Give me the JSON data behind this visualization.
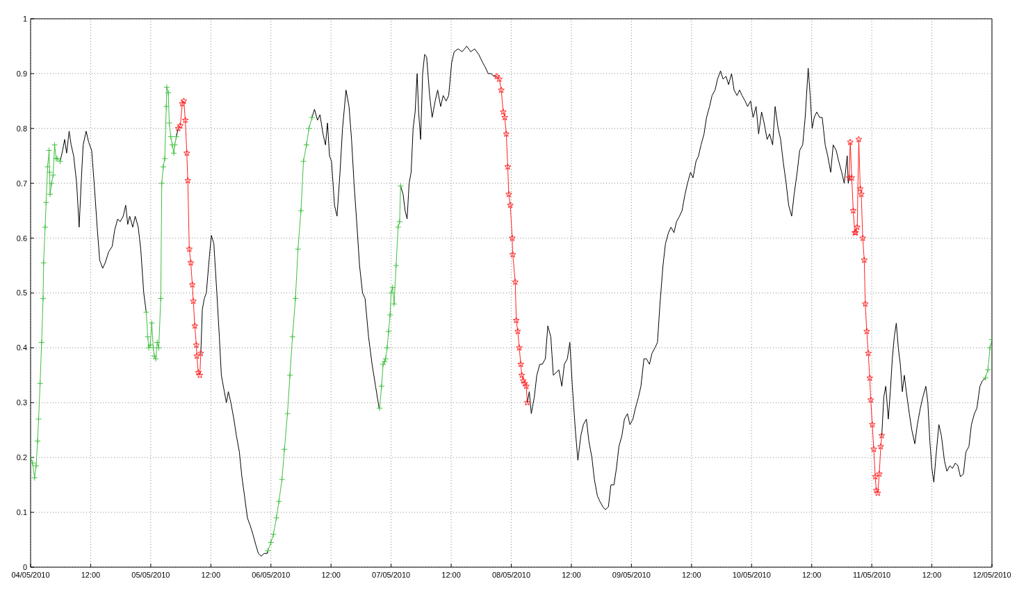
{
  "chart_data": {
    "type": "line",
    "xlim": [
      "2010-05-04",
      "2010-05-12"
    ],
    "xticks": [
      {
        "value": "2010-05-04",
        "label": "04/05/2010"
      },
      {
        "value": "2010-05-04T12:00",
        "label": "12:00"
      },
      {
        "value": "2010-05-05",
        "label": "05/05/2010"
      },
      {
        "value": "2010-05-05T12:00",
        "label": "12:00"
      },
      {
        "value": "2010-05-06",
        "label": "06/05/2010"
      },
      {
        "value": "2010-05-06T12:00",
        "label": "12:00"
      },
      {
        "value": "2010-05-07",
        "label": "07/05/2010"
      },
      {
        "value": "2010-05-07T12:00",
        "label": "12:00"
      },
      {
        "value": "2010-05-08",
        "label": "08/05/2010"
      },
      {
        "value": "2010-05-08T12:00",
        "label": "12:00"
      },
      {
        "value": "2010-05-09",
        "label": "09/05/2010"
      },
      {
        "value": "2010-05-09T12:00",
        "label": "12:00"
      },
      {
        "value": "2010-05-10",
        "label": "10/05/2010"
      },
      {
        "value": "2010-05-10T12:00",
        "label": "12:00"
      },
      {
        "value": "2010-05-11",
        "label": "11/05/2010"
      },
      {
        "value": "2010-05-11T12:00",
        "label": "12:00"
      },
      {
        "value": "2010-05-12",
        "label": "12/05/2010"
      }
    ],
    "ylim": [
      0,
      1
    ],
    "yticks": [
      0,
      0.1,
      0.2,
      0.3,
      0.4,
      0.5,
      0.6,
      0.7,
      0.8,
      0.9,
      1
    ],
    "grid": true,
    "series": [
      {
        "color": "#3fbf3f",
        "marker": "cross",
        "x": [
          "2010-05-04T00:00",
          "2010-05-04T00:24",
          "2010-05-04T00:48",
          "2010-05-04T01:06",
          "2010-05-04T01:24",
          "2010-05-04T01:36",
          "2010-05-04T01:54",
          "2010-05-04T02:12",
          "2010-05-04T02:30",
          "2010-05-04T02:36",
          "2010-05-04T02:54",
          "2010-05-04T03:06",
          "2010-05-04T03:24",
          "2010-05-04T03:42",
          "2010-05-04T03:48",
          "2010-05-04T03:54",
          "2010-05-04T04:12",
          "2010-05-04T04:30",
          "2010-05-04T04:48",
          "2010-05-04T05:06",
          "2010-05-04T05:18",
          "2010-05-04T05:54"
        ],
        "values": [
          0.2,
          0.19,
          0.163,
          0.185,
          0.23,
          0.27,
          0.335,
          0.41,
          0.49,
          0.555,
          0.62,
          0.665,
          0.73,
          0.76,
          0.72,
          0.68,
          0.7,
          0.715,
          0.77,
          0.745,
          0.745,
          0.74
        ]
      },
      {
        "color": "#000000",
        "x": [
          "2010-05-04T05:54",
          "2010-05-04T06:24",
          "2010-05-04T06:48",
          "2010-05-04T07:12",
          "2010-05-04T07:42",
          "2010-05-04T08:06",
          "2010-05-04T08:36",
          "2010-05-04T09:12",
          "2010-05-04T09:42",
          "2010-05-04T10:06",
          "2010-05-04T10:30",
          "2010-05-04T11:06",
          "2010-05-04T11:36",
          "2010-05-04T12:12",
          "2010-05-04T12:42",
          "2010-05-04T13:18",
          "2010-05-04T13:48",
          "2010-05-04T14:24",
          "2010-05-04T14:54",
          "2010-05-04T15:36",
          "2010-05-04T16:18",
          "2010-05-04T16:48",
          "2010-05-04T17:24",
          "2010-05-04T17:54",
          "2010-05-04T18:30",
          "2010-05-04T19:00",
          "2010-05-04T19:24",
          "2010-05-04T19:48",
          "2010-05-04T20:24",
          "2010-05-04T20:54",
          "2010-05-04T21:30",
          "2010-05-04T22:00",
          "2010-05-04T22:36",
          "2010-05-04T23:06"
        ],
        "values": [
          0.74,
          0.76,
          0.78,
          0.755,
          0.795,
          0.77,
          0.75,
          0.7,
          0.62,
          0.7,
          0.77,
          0.795,
          0.775,
          0.76,
          0.7,
          0.62,
          0.56,
          0.545,
          0.555,
          0.575,
          0.585,
          0.615,
          0.635,
          0.63,
          0.64,
          0.66,
          0.625,
          0.64,
          0.62,
          0.64,
          0.62,
          0.58,
          0.5,
          0.465
        ]
      },
      {
        "color": "#3fbf3f",
        "marker": "cross",
        "x": [
          "2010-05-04T23:06",
          "2010-05-04T23:24",
          "2010-05-04T23:36",
          "2010-05-04T23:54",
          "2010-05-05T00:12",
          "2010-05-05T00:30",
          "2010-05-05T00:42",
          "2010-05-05T01:00",
          "2010-05-05T01:18",
          "2010-05-05T01:36",
          "2010-05-05T02:00",
          "2010-05-05T02:12",
          "2010-05-05T02:30",
          "2010-05-05T02:48",
          "2010-05-05T03:06",
          "2010-05-05T03:12",
          "2010-05-05T03:30",
          "2010-05-05T03:42",
          "2010-05-05T04:00",
          "2010-05-05T04:18",
          "2010-05-05T04:36",
          "2010-05-05T04:48",
          "2010-05-05T05:06"
        ],
        "values": [
          0.465,
          0.42,
          0.4,
          0.405,
          0.445,
          0.4,
          0.385,
          0.38,
          0.41,
          0.4,
          0.49,
          0.7,
          0.73,
          0.745,
          0.84,
          0.875,
          0.865,
          0.81,
          0.785,
          0.77,
          0.755,
          0.77,
          0.785
        ]
      },
      {
        "color": "#000000",
        "x": [
          "2010-05-05T05:06",
          "2010-05-05T05:30"
        ],
        "values": [
          0.785,
          0.8
        ]
      },
      {
        "color": "#ff2020",
        "marker": "star",
        "x": [
          "2010-05-05T05:30",
          "2010-05-05T05:54",
          "2010-05-05T06:18",
          "2010-05-05T06:36",
          "2010-05-05T06:54",
          "2010-05-05T07:12",
          "2010-05-05T07:24",
          "2010-05-05T07:42",
          "2010-05-05T08:00",
          "2010-05-05T08:18",
          "2010-05-05T08:30",
          "2010-05-05T08:48",
          "2010-05-05T09:06",
          "2010-05-05T09:12",
          "2010-05-05T09:30",
          "2010-05-05T09:48",
          "2010-05-05T10:00"
        ],
        "values": [
          0.8,
          0.805,
          0.845,
          0.85,
          0.815,
          0.755,
          0.705,
          0.58,
          0.555,
          0.515,
          0.485,
          0.44,
          0.405,
          0.385,
          0.355,
          0.35,
          0.39
        ]
      },
      {
        "color": "#000000",
        "x": [
          "2010-05-05T10:00",
          "2010-05-05T10:18",
          "2010-05-05T10:42",
          "2010-05-05T11:06",
          "2010-05-05T11:42",
          "2010-05-05T12:06",
          "2010-05-05T12:36",
          "2010-05-05T13:12",
          "2010-05-05T13:42",
          "2010-05-05T14:06",
          "2010-05-05T14:42",
          "2010-05-05T15:06",
          "2010-05-05T15:30",
          "2010-05-05T16:00",
          "2010-05-05T16:36",
          "2010-05-05T17:06",
          "2010-05-05T17:42",
          "2010-05-05T18:12",
          "2010-05-05T18:48",
          "2010-05-05T19:18",
          "2010-05-05T19:54",
          "2010-05-05T20:24",
          "2010-05-05T21:00",
          "2010-05-05T21:30",
          "2010-05-05T22:06",
          "2010-05-05T22:36",
          "2010-05-05T23:12",
          "2010-05-05T23:24"
        ],
        "values": [
          0.39,
          0.47,
          0.49,
          0.5,
          0.565,
          0.605,
          0.59,
          0.5,
          0.42,
          0.35,
          0.32,
          0.3,
          0.32,
          0.3,
          0.27,
          0.24,
          0.21,
          0.165,
          0.125,
          0.09,
          0.075,
          0.06,
          0.04,
          0.025,
          0.02,
          0.025,
          0.025,
          0.03
        ]
      },
      {
        "color": "#3fbf3f",
        "marker": "cross",
        "x": [
          "2010-05-05T23:24",
          "2010-05-06T00:00",
          "2010-05-06T00:30",
          "2010-05-06T01:06",
          "2010-05-06T01:36",
          "2010-05-06T02:12",
          "2010-05-06T02:42",
          "2010-05-06T03:18",
          "2010-05-06T03:48",
          "2010-05-06T04:18",
          "2010-05-06T04:54",
          "2010-05-06T05:24",
          "2010-05-06T06:00",
          "2010-05-06T06:30",
          "2010-05-06T07:06",
          "2010-05-06T07:36",
          "2010-05-06T08:12"
        ],
        "values": [
          0.03,
          0.045,
          0.06,
          0.09,
          0.12,
          0.16,
          0.215,
          0.28,
          0.35,
          0.42,
          0.49,
          0.58,
          0.65,
          0.74,
          0.77,
          0.8,
          0.82
        ]
      },
      {
        "color": "#000000",
        "x": [
          "2010-05-06T08:12",
          "2010-05-06T08:42",
          "2010-05-06T09:18",
          "2010-05-06T09:48",
          "2010-05-06T10:24",
          "2010-05-06T10:54",
          "2010-05-06T11:18",
          "2010-05-06T11:42",
          "2010-05-06T12:06",
          "2010-05-06T12:42",
          "2010-05-06T13:12",
          "2010-05-06T13:48",
          "2010-05-06T14:18",
          "2010-05-06T15:00",
          "2010-05-06T15:36",
          "2010-05-06T16:06",
          "2010-05-06T16:36",
          "2010-05-06T17:12",
          "2010-05-06T17:42",
          "2010-05-06T18:18",
          "2010-05-06T18:48",
          "2010-05-06T19:30",
          "2010-05-06T20:12",
          "2010-05-06T20:54",
          "2010-05-06T21:36",
          "2010-05-06T21:42"
        ],
        "values": [
          0.82,
          0.835,
          0.815,
          0.825,
          0.79,
          0.77,
          0.81,
          0.75,
          0.74,
          0.66,
          0.64,
          0.72,
          0.8,
          0.87,
          0.84,
          0.78,
          0.7,
          0.62,
          0.55,
          0.5,
          0.49,
          0.42,
          0.37,
          0.33,
          0.29,
          0.29
        ]
      },
      {
        "color": "#3fbf3f",
        "marker": "cross",
        "x": [
          "2010-05-06T21:42",
          "2010-05-06T22:06",
          "2010-05-06T22:24",
          "2010-05-06T22:42",
          "2010-05-06T22:54",
          "2010-05-06T23:12",
          "2010-05-06T23:30",
          "2010-05-06T23:48",
          "2010-05-07T00:00",
          "2010-05-07T00:18",
          "2010-05-07T00:36",
          "2010-05-07T01:00",
          "2010-05-07T01:24",
          "2010-05-07T01:42",
          "2010-05-07T01:54"
        ],
        "values": [
          0.29,
          0.33,
          0.37,
          0.375,
          0.38,
          0.4,
          0.43,
          0.46,
          0.5,
          0.51,
          0.48,
          0.55,
          0.62,
          0.63,
          0.695
        ]
      },
      {
        "color": "#000000",
        "x": [
          "2010-05-07T01:54",
          "2010-05-07T02:24",
          "2010-05-07T02:48",
          "2010-05-07T03:12",
          "2010-05-07T03:36",
          "2010-05-07T04:00",
          "2010-05-07T04:24",
          "2010-05-07T04:48",
          "2010-05-07T05:12",
          "2010-05-07T05:30",
          "2010-05-07T05:54",
          "2010-05-07T06:18",
          "2010-05-07T06:42",
          "2010-05-07T07:06",
          "2010-05-07T07:42",
          "2010-05-07T08:12",
          "2010-05-07T08:48",
          "2010-05-07T09:18",
          "2010-05-07T09:54",
          "2010-05-07T10:24",
          "2010-05-07T11:00",
          "2010-05-07T11:30",
          "2010-05-07T12:06",
          "2010-05-07T12:36",
          "2010-05-07T13:24",
          "2010-05-07T14:12",
          "2010-05-07T15:06",
          "2010-05-07T15:54",
          "2010-05-07T16:42",
          "2010-05-07T17:30",
          "2010-05-07T18:18",
          "2010-05-07T18:54",
          "2010-05-07T19:24",
          "2010-05-07T20:00",
          "2010-05-07T20:30",
          "2010-05-07T21:06"
        ],
        "values": [
          0.695,
          0.68,
          0.65,
          0.635,
          0.7,
          0.72,
          0.8,
          0.83,
          0.9,
          0.83,
          0.78,
          0.9,
          0.935,
          0.93,
          0.86,
          0.82,
          0.85,
          0.87,
          0.84,
          0.86,
          0.85,
          0.86,
          0.92,
          0.94,
          0.945,
          0.94,
          0.95,
          0.94,
          0.945,
          0.935,
          0.92,
          0.91,
          0.9,
          0.9,
          0.895,
          0.895
        ]
      },
      {
        "color": "#ff2020",
        "marker": "star",
        "x": [
          "2010-05-07T21:06",
          "2010-05-07T21:36",
          "2010-05-07T22:00",
          "2010-05-07T22:24",
          "2010-05-07T22:42",
          "2010-05-07T23:00",
          "2010-05-07T23:18",
          "2010-05-07T23:30",
          "2010-05-07T23:48",
          "2010-05-08T00:12",
          "2010-05-08T00:18",
          "2010-05-08T00:48",
          "2010-05-08T01:00",
          "2010-05-08T01:18",
          "2010-05-08T01:36",
          "2010-05-08T01:54",
          "2010-05-08T02:06",
          "2010-05-08T02:24",
          "2010-05-08T02:42",
          "2010-05-08T03:00",
          "2010-05-08T03:12"
        ],
        "values": [
          0.895,
          0.89,
          0.87,
          0.83,
          0.82,
          0.79,
          0.73,
          0.68,
          0.66,
          0.6,
          0.57,
          0.52,
          0.45,
          0.43,
          0.4,
          0.37,
          0.35,
          0.34,
          0.335,
          0.33,
          0.3
        ]
      },
      {
        "color": "#000000",
        "x": [
          "2010-05-08T03:12",
          "2010-05-08T03:36",
          "2010-05-08T04:00",
          "2010-05-08T04:36",
          "2010-05-08T05:06",
          "2010-05-08T05:42",
          "2010-05-08T06:12",
          "2010-05-08T06:48",
          "2010-05-08T07:18",
          "2010-05-08T07:54",
          "2010-05-08T08:24",
          "2010-05-08T09:00",
          "2010-05-08T09:30",
          "2010-05-08T10:06",
          "2010-05-08T10:36",
          "2010-05-08T11:12",
          "2010-05-08T11:42",
          "2010-05-08T12:12",
          "2010-05-08T12:48",
          "2010-05-08T13:18",
          "2010-05-08T13:54",
          "2010-05-08T14:24",
          "2010-05-08T15:00",
          "2010-05-08T15:30",
          "2010-05-08T16:06",
          "2010-05-08T16:36",
          "2010-05-08T17:12",
          "2010-05-08T17:42",
          "2010-05-08T18:18",
          "2010-05-08T18:48",
          "2010-05-08T19:24",
          "2010-05-08T19:54",
          "2010-05-08T20:30",
          "2010-05-08T21:00",
          "2010-05-08T21:30",
          "2010-05-08T22:06",
          "2010-05-08T22:36",
          "2010-05-08T23:12",
          "2010-05-08T23:42",
          "2010-05-09T00:18",
          "2010-05-09T00:48",
          "2010-05-09T01:24",
          "2010-05-09T01:54",
          "2010-05-09T02:30",
          "2010-05-09T03:00",
          "2010-05-09T03:36",
          "2010-05-09T04:06",
          "2010-05-09T04:42",
          "2010-05-09T05:12",
          "2010-05-09T05:42",
          "2010-05-09T06:18",
          "2010-05-09T06:48",
          "2010-05-09T07:24",
          "2010-05-09T07:54",
          "2010-05-09T08:30",
          "2010-05-09T09:00",
          "2010-05-09T09:36",
          "2010-05-09T10:06",
          "2010-05-09T10:42",
          "2010-05-09T11:12",
          "2010-05-09T11:48",
          "2010-05-09T12:18",
          "2010-05-09T12:54",
          "2010-05-09T13:24",
          "2010-05-09T13:54",
          "2010-05-09T14:30",
          "2010-05-09T15:00",
          "2010-05-09T15:36",
          "2010-05-09T16:06",
          "2010-05-09T16:42",
          "2010-05-09T17:12",
          "2010-05-09T17:48",
          "2010-05-09T18:18",
          "2010-05-09T18:54",
          "2010-05-09T19:24",
          "2010-05-09T20:00",
          "2010-05-09T20:30",
          "2010-05-09T21:06",
          "2010-05-09T21:36",
          "2010-05-09T22:06",
          "2010-05-09T22:42",
          "2010-05-09T23:12",
          "2010-05-09T23:48",
          "2010-05-10T00:18",
          "2010-05-10T00:54",
          "2010-05-10T01:24",
          "2010-05-10T02:00",
          "2010-05-10T02:30",
          "2010-05-10T03:06",
          "2010-05-10T03:36",
          "2010-05-10T04:12",
          "2010-05-10T04:42",
          "2010-05-10T05:18",
          "2010-05-10T05:48",
          "2010-05-10T06:18",
          "2010-05-10T06:54",
          "2010-05-10T07:24",
          "2010-05-10T08:00",
          "2010-05-10T08:30",
          "2010-05-10T09:06",
          "2010-05-10T09:36",
          "2010-05-10T10:12",
          "2010-05-10T10:42",
          "2010-05-10T11:18",
          "2010-05-10T11:42",
          "2010-05-10T12:06",
          "2010-05-10T12:30",
          "2010-05-10T13:00",
          "2010-05-10T13:36",
          "2010-05-10T14:06",
          "2010-05-10T14:42",
          "2010-05-10T15:12",
          "2010-05-10T15:48",
          "2010-05-10T16:18",
          "2010-05-10T16:54",
          "2010-05-10T17:24",
          "2010-05-10T18:00",
          "2010-05-10T18:30",
          "2010-05-10T19:06",
          "2010-05-10T19:18",
          "2010-05-10T19:30"
        ],
        "values": [
          0.3,
          0.32,
          0.28,
          0.31,
          0.35,
          0.37,
          0.37,
          0.38,
          0.44,
          0.42,
          0.35,
          0.355,
          0.36,
          0.33,
          0.37,
          0.38,
          0.41,
          0.33,
          0.25,
          0.195,
          0.24,
          0.26,
          0.27,
          0.23,
          0.2,
          0.16,
          0.13,
          0.12,
          0.11,
          0.105,
          0.11,
          0.15,
          0.15,
          0.18,
          0.22,
          0.24,
          0.27,
          0.28,
          0.26,
          0.27,
          0.29,
          0.31,
          0.33,
          0.38,
          0.38,
          0.37,
          0.39,
          0.4,
          0.41,
          0.48,
          0.55,
          0.59,
          0.61,
          0.62,
          0.61,
          0.63,
          0.64,
          0.65,
          0.68,
          0.7,
          0.72,
          0.71,
          0.74,
          0.75,
          0.77,
          0.79,
          0.82,
          0.84,
          0.86,
          0.87,
          0.89,
          0.905,
          0.89,
          0.895,
          0.88,
          0.9,
          0.87,
          0.86,
          0.87,
          0.86,
          0.85,
          0.84,
          0.85,
          0.82,
          0.84,
          0.79,
          0.83,
          0.81,
          0.78,
          0.79,
          0.77,
          0.84,
          0.8,
          0.78,
          0.74,
          0.7,
          0.66,
          0.64,
          0.68,
          0.72,
          0.76,
          0.77,
          0.82,
          0.91,
          0.86,
          0.8,
          0.82,
          0.83,
          0.82,
          0.82,
          0.77,
          0.75,
          0.72,
          0.77,
          0.76,
          0.74,
          0.72,
          0.7,
          0.75,
          0.7,
          0.71
        ]
      },
      {
        "color": "#ff2020",
        "marker": "star",
        "x": [
          "2010-05-10T19:30",
          "2010-05-10T19:42",
          "2010-05-10T20:00",
          "2010-05-10T20:18",
          "2010-05-10T20:36",
          "2010-05-10T20:48",
          "2010-05-10T21:06",
          "2010-05-10T21:24",
          "2010-05-10T21:42",
          "2010-05-10T21:54",
          "2010-05-10T22:12",
          "2010-05-10T22:30",
          "2010-05-10T22:42",
          "2010-05-10T23:00",
          "2010-05-10T23:18",
          "2010-05-10T23:36",
          "2010-05-10T23:48",
          "2010-05-11T00:06",
          "2010-05-11T00:24",
          "2010-05-11T00:42",
          "2010-05-11T00:54",
          "2010-05-11T01:12",
          "2010-05-11T01:30",
          "2010-05-11T01:48",
          "2010-05-11T02:00"
        ],
        "values": [
          0.71,
          0.775,
          0.71,
          0.65,
          0.61,
          0.61,
          0.62,
          0.78,
          0.69,
          0.68,
          0.6,
          0.56,
          0.48,
          0.43,
          0.39,
          0.345,
          0.305,
          0.26,
          0.215,
          0.165,
          0.14,
          0.135,
          0.17,
          0.22,
          0.24
        ]
      },
      {
        "color": "#000000",
        "x": [
          "2010-05-11T02:00",
          "2010-05-11T02:24",
          "2010-05-11T02:48",
          "2010-05-11T03:18",
          "2010-05-11T03:42",
          "2010-05-11T04:06",
          "2010-05-11T04:30",
          "2010-05-11T04:54",
          "2010-05-11T05:18",
          "2010-05-11T05:42",
          "2010-05-11T06:06",
          "2010-05-11T06:30",
          "2010-05-11T06:54",
          "2010-05-11T07:30",
          "2010-05-11T08:00",
          "2010-05-11T08:36",
          "2010-05-11T09:06",
          "2010-05-11T09:42",
          "2010-05-11T10:12",
          "2010-05-11T10:48",
          "2010-05-11T11:12",
          "2010-05-11T11:36",
          "2010-05-11T12:00",
          "2010-05-11T12:24",
          "2010-05-11T12:48",
          "2010-05-11T13:24",
          "2010-05-11T13:54",
          "2010-05-11T14:30",
          "2010-05-11T15:00",
          "2010-05-11T15:36",
          "2010-05-11T16:06",
          "2010-05-11T16:42",
          "2010-05-11T17:12",
          "2010-05-11T17:42",
          "2010-05-11T18:18",
          "2010-05-11T18:48",
          "2010-05-11T19:24",
          "2010-05-11T19:54",
          "2010-05-11T20:30",
          "2010-05-11T21:00",
          "2010-05-11T21:36",
          "2010-05-11T22:06",
          "2010-05-11T22:42"
        ],
        "values": [
          0.24,
          0.31,
          0.33,
          0.27,
          0.32,
          0.38,
          0.42,
          0.445,
          0.4,
          0.37,
          0.32,
          0.35,
          0.32,
          0.28,
          0.25,
          0.225,
          0.26,
          0.29,
          0.31,
          0.33,
          0.3,
          0.23,
          0.18,
          0.155,
          0.2,
          0.26,
          0.24,
          0.195,
          0.175,
          0.185,
          0.18,
          0.19,
          0.185,
          0.165,
          0.17,
          0.21,
          0.22,
          0.26,
          0.28,
          0.29,
          0.33,
          0.34,
          0.345
        ]
      },
      {
        "color": "#3fbf3f",
        "marker": "cross",
        "x": [
          "2010-05-11T22:42",
          "2010-05-11T23:12",
          "2010-05-11T23:36",
          "2010-05-12T00:00"
        ],
        "values": [
          0.345,
          0.36,
          0.4,
          0.415
        ]
      }
    ]
  }
}
